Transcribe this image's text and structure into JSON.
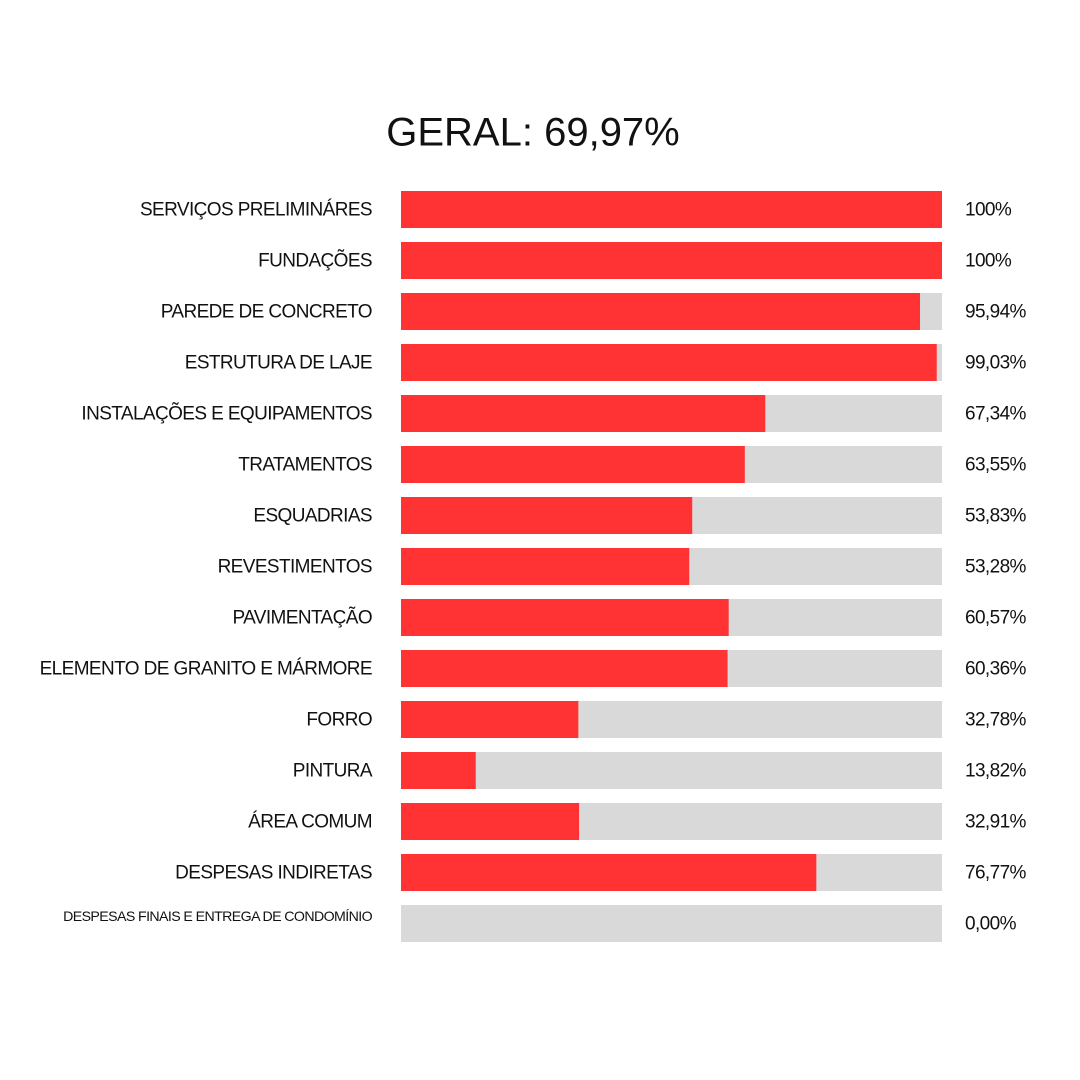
{
  "chart_data": {
    "type": "bar",
    "orientation": "horizontal",
    "title": "GERAL: 69,97%",
    "categories": [
      "SERVIÇOS PRELIMINÁRES",
      "FUNDAÇÕES",
      "PAREDE DE CONCRETO",
      "ESTRUTURA DE LAJE",
      "INSTALAÇÕES E EQUIPAMENTOS",
      "TRATAMENTOS",
      "ESQUADRIAS",
      "REVESTIMENTOS",
      "PAVIMENTAÇÃO",
      "ELEMENTO DE GRANITO E MÁRMORE",
      "FORRO",
      "PINTURA",
      "ÁREA COMUM",
      "DESPESAS INDIRETAS",
      "DESPESAS FINAIS E ENTREGA DE CONDOMÍNIO"
    ],
    "values": [
      100,
      100,
      95.94,
      99.03,
      67.34,
      63.55,
      53.83,
      53.28,
      60.57,
      60.36,
      32.78,
      13.82,
      32.91,
      76.77,
      0
    ],
    "value_labels": [
      "100%",
      "100%",
      "95,94%",
      "99,03%",
      "67,34%",
      "63,55%",
      "53,83%",
      "53,28%",
      "60,57%",
      "60,36%",
      "32,78%",
      "13,82%",
      "32,91%",
      "76,77%",
      "0,00%"
    ],
    "color": "#ff3333",
    "track_color": "#d9d9d9",
    "xlim": [
      0,
      100
    ]
  }
}
